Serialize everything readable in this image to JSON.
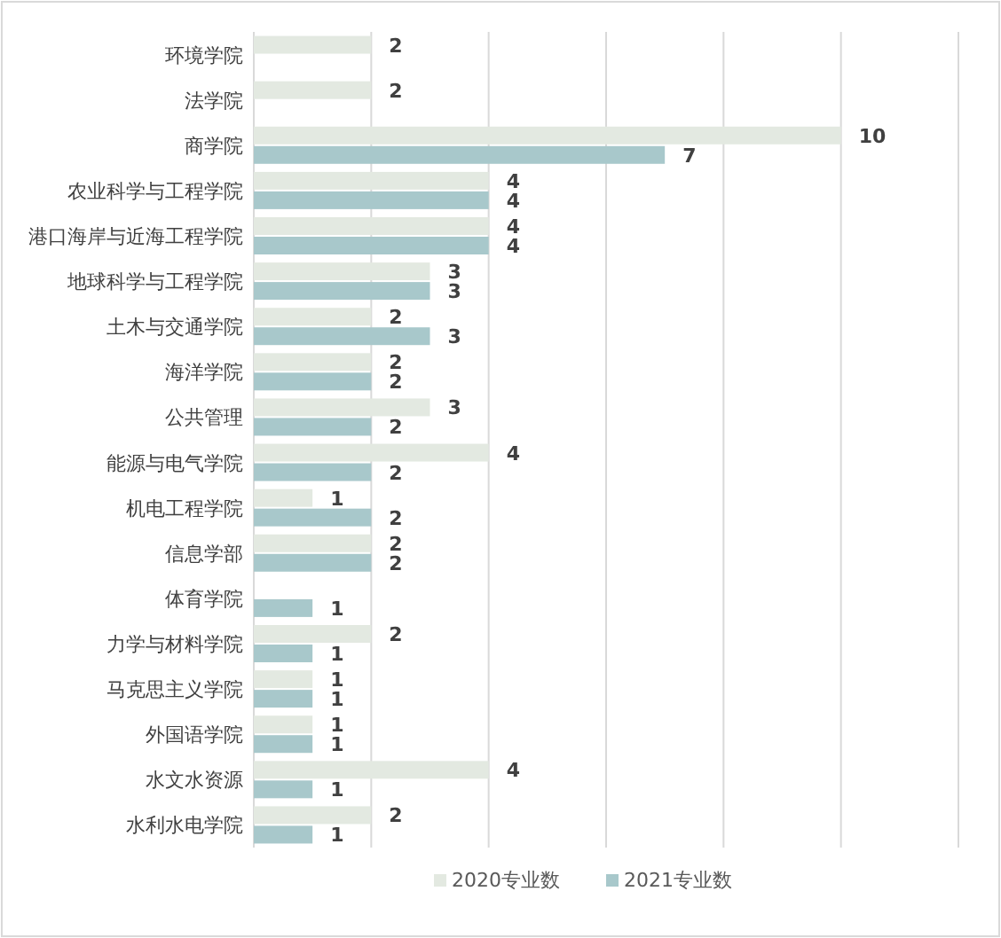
{
  "chart_data": {
    "type": "bar",
    "orientation": "horizontal",
    "categories": [
      "环境学院",
      "法学院",
      "商学院",
      "农业科学与工程学院",
      "港口海岸与近海工程学院",
      "地球科学与工程学院",
      "土木与交通学院",
      "海洋学院",
      "公共管理",
      "能源与电气学院",
      "机电工程学院",
      "信息学部",
      "体育学院",
      "力学与材料学院",
      "马克思主义学院",
      "外国语学院",
      "水文水资源",
      "水利水电学院"
    ],
    "series": [
      {
        "name": "2020专业数",
        "color": "#e3e9e1",
        "values": [
          2,
          2,
          10,
          4,
          4,
          3,
          2,
          2,
          3,
          4,
          1,
          2,
          null,
          2,
          1,
          1,
          4,
          2
        ]
      },
      {
        "name": "2021专业数",
        "color": "#a8c8cb",
        "values": [
          null,
          null,
          7,
          4,
          4,
          3,
          3,
          2,
          2,
          2,
          2,
          2,
          1,
          1,
          1,
          1,
          1,
          1
        ]
      }
    ],
    "xlim": [
      0,
      12
    ],
    "xticks": [
      {
        "value": 0,
        "label": null
      },
      {
        "value": 2,
        "label": null
      },
      {
        "value": 4,
        "label": null
      },
      {
        "value": 6,
        "label": null
      },
      {
        "value": 8,
        "label": null
      },
      {
        "value": 10,
        "label": null
      },
      {
        "value": 12,
        "label": null
      }
    ],
    "grid": "x",
    "data_labels": true,
    "legend": "bottom"
  }
}
